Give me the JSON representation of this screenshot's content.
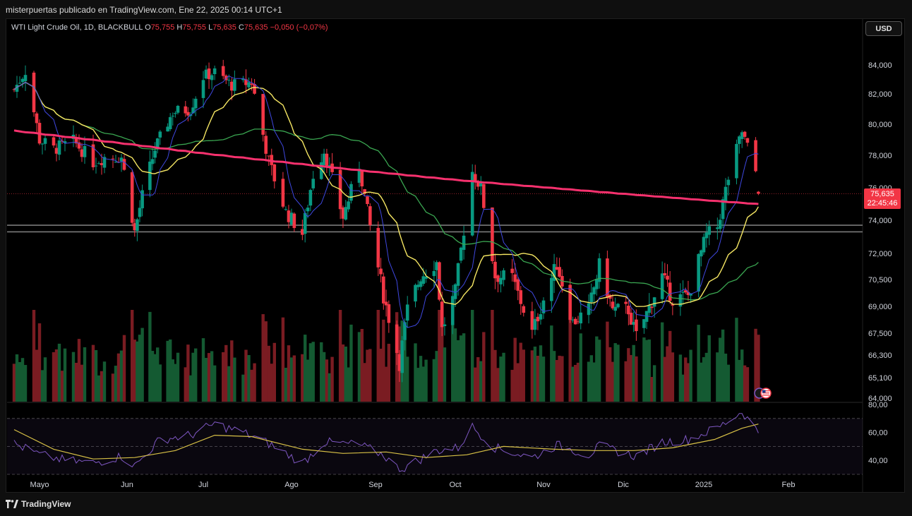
{
  "header": {
    "publisher_text": "misterpuertas publicado en TradingView.com, Ene 22, 2025 00:14 UTC+1"
  },
  "legend": {
    "symbol": "WTI Light Crude Oil, 1D, BLACKBULL",
    "open_label": "O",
    "open": "75,755",
    "high_label": "H",
    "high": "75,755",
    "low_label": "L",
    "low": "75,635",
    "close_label": "C",
    "close": "75,635",
    "change": "−0,050 (−0,07%)"
  },
  "currency_button": "USD",
  "price_badge": {
    "price": "75,635",
    "countdown": "22:45:46"
  },
  "footer": {
    "brand": "TradingView"
  },
  "colors": {
    "up": "#089981",
    "down": "#f23645",
    "ma200": "#f7316e",
    "ma20": "#f5e663",
    "ma50": "#3aa651",
    "ma10": "#3f48e0",
    "rsi": "#7e57c2",
    "rsi_ma": "#d7c046",
    "band": "#7a7a7a"
  },
  "chart_data": [
    {
      "type": "candlestick",
      "title": "WTI Light Crude Oil, 1D, BLACKBULL",
      "ylim": [
        64.0,
        85.0
      ],
      "y_ticks": [
        "84,000",
        "82,000",
        "80,000",
        "78,000",
        "76,000",
        "74,000",
        "72,000",
        "70,500",
        "69,000",
        "67,500",
        "66,300",
        "65,100",
        "64,000"
      ],
      "x_ticks": [
        "Mayo",
        "Jun",
        "Jul",
        "Ago",
        "Sep",
        "Oct",
        "Nov",
        "Dic",
        "2025",
        "Feb"
      ],
      "support_band": [
        73.3,
        73.7
      ],
      "last_price": 75.635,
      "close_path": [
        [
          "2024-04-22",
          82.3
        ],
        [
          "2024-04-26",
          83.6
        ],
        [
          "2024-05-01",
          79.0
        ],
        [
          "2024-05-06",
          78.4
        ],
        [
          "2024-05-13",
          78.9
        ],
        [
          "2024-05-20",
          77.6
        ],
        [
          "2024-05-24",
          77.9
        ],
        [
          "2024-05-30",
          77.9
        ],
        [
          "2024-06-04",
          73.3
        ],
        [
          "2024-06-07",
          75.5
        ],
        [
          "2024-06-12",
          78.4
        ],
        [
          "2024-06-19",
          80.8
        ],
        [
          "2024-06-26",
          81.0
        ],
        [
          "2024-07-01",
          83.2
        ],
        [
          "2024-07-05",
          83.5
        ],
        [
          "2024-07-11",
          82.6
        ],
        [
          "2024-07-18",
          82.8
        ],
        [
          "2024-07-24",
          77.6
        ],
        [
          "2024-07-30",
          74.5
        ],
        [
          "2024-08-05",
          73.2
        ],
        [
          "2024-08-09",
          76.8
        ],
        [
          "2024-08-13",
          78.3
        ],
        [
          "2024-08-20",
          74.2
        ],
        [
          "2024-08-26",
          77.4
        ],
        [
          "2024-08-30",
          73.6
        ],
        [
          "2024-09-04",
          69.6
        ],
        [
          "2024-09-10",
          65.9
        ],
        [
          "2024-09-13",
          68.8
        ],
        [
          "2024-09-18",
          70.7
        ],
        [
          "2024-09-24",
          71.5
        ],
        [
          "2024-09-26",
          67.7
        ],
        [
          "2024-10-01",
          69.8
        ],
        [
          "2024-10-07",
          77.0
        ],
        [
          "2024-10-10",
          76.0
        ],
        [
          "2024-10-15",
          70.7
        ],
        [
          "2024-10-21",
          70.6
        ],
        [
          "2024-10-28",
          67.5
        ],
        [
          "2024-11-01",
          69.4
        ],
        [
          "2024-11-06",
          71.4
        ],
        [
          "2024-11-12",
          68.1
        ],
        [
          "2024-11-18",
          68.8
        ],
        [
          "2024-11-22",
          71.3
        ],
        [
          "2024-11-27",
          68.8
        ],
        [
          "2024-12-03",
          68.8
        ],
        [
          "2024-12-06",
          67.3
        ],
        [
          "2024-12-10",
          68.6
        ],
        [
          "2024-12-16",
          70.7
        ],
        [
          "2024-12-20",
          69.4
        ],
        [
          "2024-12-26",
          69.6
        ],
        [
          "2025-01-02",
          73.1
        ],
        [
          "2025-01-06",
          73.6
        ],
        [
          "2025-01-10",
          76.6
        ],
        [
          "2025-01-15",
          79.5
        ],
        [
          "2025-01-20",
          77.0
        ],
        [
          "2025-01-21",
          75.6
        ]
      ],
      "volume_ylim": [
        0,
        100
      ]
    },
    {
      "type": "line",
      "title": "RSI",
      "ylim": [
        30,
        80
      ],
      "y_ticks": [
        "80,00",
        "60,00",
        "40,00"
      ],
      "bands": [
        70,
        50,
        30
      ],
      "rsi_path": [
        [
          "2024-04-22",
          52
        ],
        [
          "2024-05-01",
          44
        ],
        [
          "2024-05-10",
          40
        ],
        [
          "2024-05-20",
          38
        ],
        [
          "2024-05-30",
          43
        ],
        [
          "2024-06-04",
          36
        ],
        [
          "2024-06-14",
          55
        ],
        [
          "2024-06-26",
          58
        ],
        [
          "2024-07-05",
          66
        ],
        [
          "2024-07-15",
          60
        ],
        [
          "2024-07-24",
          52
        ],
        [
          "2024-08-05",
          38
        ],
        [
          "2024-08-13",
          53
        ],
        [
          "2024-08-26",
          51
        ],
        [
          "2024-09-04",
          44
        ],
        [
          "2024-09-10",
          33
        ],
        [
          "2024-09-24",
          47
        ],
        [
          "2024-10-02",
          49
        ],
        [
          "2024-10-07",
          64
        ],
        [
          "2024-10-15",
          49
        ],
        [
          "2024-10-28",
          42
        ],
        [
          "2024-11-06",
          51
        ],
        [
          "2024-11-18",
          44
        ],
        [
          "2024-11-22",
          50
        ],
        [
          "2024-12-06",
          43
        ],
        [
          "2024-12-16",
          53
        ],
        [
          "2024-12-26",
          55
        ],
        [
          "2025-01-06",
          63
        ],
        [
          "2025-01-15",
          75
        ],
        [
          "2025-01-21",
          60
        ]
      ],
      "rsi_ma_path": [
        [
          "2024-04-22",
          62
        ],
        [
          "2024-05-06",
          48
        ],
        [
          "2024-05-20",
          41
        ],
        [
          "2024-06-04",
          42
        ],
        [
          "2024-06-20",
          47
        ],
        [
          "2024-07-05",
          58
        ],
        [
          "2024-07-18",
          57
        ],
        [
          "2024-08-05",
          48
        ],
        [
          "2024-08-20",
          45
        ],
        [
          "2024-09-05",
          46
        ],
        [
          "2024-09-20",
          42
        ],
        [
          "2024-10-05",
          44
        ],
        [
          "2024-10-18",
          50
        ],
        [
          "2024-11-05",
          48
        ],
        [
          "2024-11-20",
          47
        ],
        [
          "2024-12-05",
          47
        ],
        [
          "2024-12-20",
          49
        ],
        [
          "2025-01-05",
          55
        ],
        [
          "2025-01-15",
          63
        ],
        [
          "2025-01-21",
          66
        ]
      ]
    }
  ]
}
